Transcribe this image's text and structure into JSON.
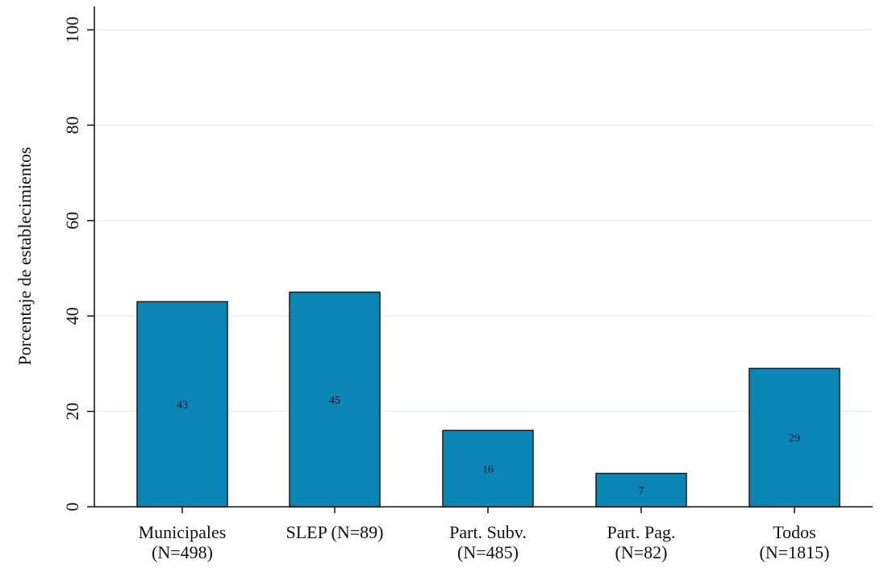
{
  "chart_data": {
    "type": "bar",
    "categories": [
      [
        "Municipales",
        "(N=498)"
      ],
      [
        "SLEP (N=89)"
      ],
      [
        "Part. Subv.",
        "(N=485)"
      ],
      [
        "Part. Pag.",
        "(N=82)"
      ],
      [
        "Todos",
        "(N=1815)"
      ]
    ],
    "values": [
      43,
      45,
      16,
      7,
      29
    ],
    "value_labels": [
      "43",
      "45",
      "16",
      "7",
      "29"
    ],
    "title": "",
    "xlabel": "",
    "ylabel": "Porcentaje de establecimientos",
    "ylim": [
      0,
      100
    ],
    "yticks": [
      0,
      20,
      40,
      60,
      80,
      100
    ],
    "grid": true,
    "colors": {
      "bar_fill": "#0a87b6",
      "bar_stroke": "#1a1a1a",
      "grid": "#e4eef0",
      "axis": "#111111"
    }
  }
}
